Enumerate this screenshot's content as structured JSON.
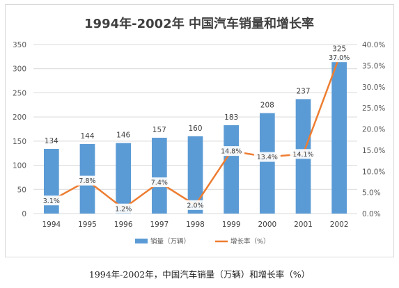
{
  "chart_data": {
    "type": "bar+line",
    "title": "1994年-2002年 中国汽车销量和增长率",
    "categories": [
      "1994",
      "1995",
      "1996",
      "1997",
      "1998",
      "1999",
      "2000",
      "2001",
      "2002"
    ],
    "series": [
      {
        "name": "销量（万辆）",
        "kind": "bar",
        "axis": "left",
        "values": [
          134,
          144,
          146,
          157,
          160,
          183,
          208,
          237,
          325
        ],
        "labels": [
          "134",
          "144",
          "146",
          "157",
          "160",
          "183",
          "208",
          "237",
          "325"
        ]
      },
      {
        "name": "增长率（%）",
        "kind": "line",
        "axis": "right",
        "values": [
          3.1,
          7.8,
          1.2,
          7.4,
          2.0,
          14.8,
          13.4,
          14.1,
          37.0
        ],
        "labels": [
          "3.1%",
          "7.8%",
          "1.2%",
          "7.4%",
          "2.0%",
          "14.8%",
          "13.4%",
          "14.1%",
          "37.0%"
        ]
      }
    ],
    "yleft": {
      "min": 0,
      "max": 350,
      "ticks": [
        "0",
        "50",
        "100",
        "150",
        "200",
        "250",
        "300",
        "350"
      ]
    },
    "yright": {
      "min": 0,
      "max": 40,
      "ticks": [
        "0.0%",
        "5.0%",
        "10.0%",
        "15.0%",
        "20.0%",
        "25.0%",
        "30.0%",
        "35.0%",
        "40.0%"
      ]
    },
    "grid": true,
    "legend_position": "bottom",
    "colors": {
      "bar": "#5b9bd5",
      "line": "#ed7d31",
      "grid": "#d9d9d9",
      "text": "#595959",
      "title": "#404040"
    }
  },
  "caption": "1994年-2002年，中国汽车销量（万辆）和增长率（%）"
}
